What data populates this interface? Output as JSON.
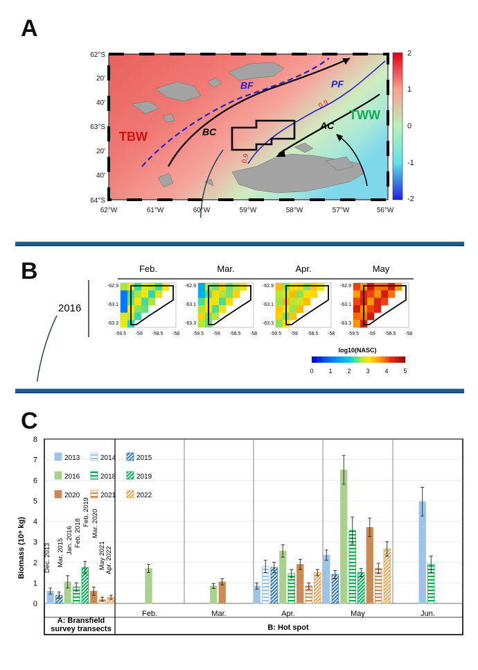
{
  "panels": {
    "a": "A",
    "b": "B",
    "c": "C"
  },
  "map": {
    "lat_labels": [
      "62°S",
      "20'",
      "40'",
      "63°S",
      "20'",
      "40'",
      "64°S"
    ],
    "lon_labels": [
      "62°W",
      "61°W",
      "60°W",
      "59°W",
      "58°W",
      "57°W",
      "56°W"
    ],
    "water_masses": {
      "tbw": "TBW",
      "tww": "TWW"
    },
    "fronts": {
      "bf": "BF",
      "pf": "PF"
    },
    "currents": {
      "bc": "BC",
      "ac": "AC"
    },
    "contours": {
      "c1": "0.9",
      "c2": "0.9"
    },
    "colorbar_ticks": [
      "2",
      "1",
      "0",
      "-1",
      "-2"
    ],
    "colors": {
      "high": "#d7191c",
      "mid": "#ffffff",
      "low": "#2b83ba",
      "front": "#2222cc",
      "land": "#9e9e9e"
    }
  },
  "heatmaps": {
    "year": "2016",
    "months": [
      "Feb.",
      "Mar.",
      "Apr.",
      "May"
    ],
    "y_ticks": [
      "-62.9",
      "-63.1",
      "-63.3"
    ],
    "x_ticks": [
      "-59.5",
      "-59",
      "-58.5",
      "-58"
    ],
    "colorbar_label": "log10(NASC)",
    "colorbar_ticks": [
      "0",
      "1",
      "2",
      "3",
      "4",
      "5"
    ]
  },
  "chart_data": {
    "type": "bar",
    "ylabel": "Biomass  (10⁹ kg)",
    "ylim": [
      0,
      8
    ],
    "y_ticks": [
      "0",
      "1",
      "2",
      "3",
      "4",
      "5",
      "6",
      "7",
      "8"
    ],
    "group_labels": [
      "A: Bransfield survey transects",
      "B: Hot spot"
    ],
    "group_a_line1": "A: Bransfield",
    "group_a_line2": "survey transects",
    "sections": [
      "",
      "Feb.",
      "Mar.",
      "Apr.",
      "May",
      "Jun."
    ],
    "survey_labels": [
      "Dec. 2013",
      "Mar. 2015",
      "Jan. 2016",
      "Feb. 2018",
      "Feb. 2019",
      "Mar. 2020",
      "May 2021",
      "Apr. 2022"
    ],
    "legend": [
      {
        "name": "2013",
        "color": "#9dc3e6",
        "pattern": "solid"
      },
      {
        "name": "2014",
        "color": "#9dc3e6",
        "pattern": "hlines"
      },
      {
        "name": "2015",
        "color": "#2e75b6",
        "pattern": "diag"
      },
      {
        "name": "2016",
        "color": "#a9d18e",
        "pattern": "solid"
      },
      {
        "name": "2018",
        "color": "#00b050",
        "pattern": "hlines"
      },
      {
        "name": "2019",
        "color": "#00b050",
        "pattern": "diag"
      },
      {
        "name": "2020",
        "color": "#c98b55",
        "pattern": "solid"
      },
      {
        "name": "2021",
        "color": "#c98b55",
        "pattern": "hlines"
      },
      {
        "name": "2022",
        "color": "#e8a24e",
        "pattern": "diag"
      }
    ],
    "series": [
      {
        "section": 0,
        "name": "2013",
        "value": 0.6,
        "err": 0.15
      },
      {
        "section": 0,
        "name": "2015",
        "value": 0.4,
        "err": 0.15
      },
      {
        "section": 0,
        "name": "2016",
        "value": 1.05,
        "err": 0.3
      },
      {
        "section": 0,
        "name": "2018",
        "value": 0.8,
        "err": 0.2
      },
      {
        "section": 0,
        "name": "2019",
        "value": 1.75,
        "err": 0.3
      },
      {
        "section": 0,
        "name": "2020",
        "value": 0.6,
        "err": 0.2
      },
      {
        "section": 0,
        "name": "2021",
        "value": 0.2,
        "err": 0.1
      },
      {
        "section": 0,
        "name": "2022",
        "value": 0.3,
        "err": 0.1
      },
      {
        "section": 1,
        "name": "2016",
        "value": 1.7,
        "err": 0.2
      },
      {
        "section": 2,
        "name": "2016",
        "value": 0.85,
        "err": 0.12
      },
      {
        "section": 2,
        "name": "2020",
        "value": 1.05,
        "err": 0.15
      },
      {
        "section": 3,
        "name": "2013",
        "value": 0.85,
        "err": 0.15
      },
      {
        "section": 3,
        "name": "2014",
        "value": 1.8,
        "err": 0.3
      },
      {
        "section": 3,
        "name": "2015",
        "value": 1.75,
        "err": 0.25
      },
      {
        "section": 3,
        "name": "2016",
        "value": 2.55,
        "err": 0.3
      },
      {
        "section": 3,
        "name": "2018",
        "value": 1.45,
        "err": 0.2
      },
      {
        "section": 3,
        "name": "2020",
        "value": 1.9,
        "err": 0.25
      },
      {
        "section": 3,
        "name": "2021",
        "value": 0.85,
        "err": 0.15
      },
      {
        "section": 3,
        "name": "2022",
        "value": 1.5,
        "err": 0.15
      },
      {
        "section": 4,
        "name": "2013",
        "value": 2.35,
        "err": 0.25
      },
      {
        "section": 4,
        "name": "2015",
        "value": 1.4,
        "err": 0.2
      },
      {
        "section": 4,
        "name": "2016",
        "value": 6.5,
        "err": 0.7
      },
      {
        "section": 4,
        "name": "2018",
        "value": 3.55,
        "err": 0.65
      },
      {
        "section": 4,
        "name": "2019",
        "value": 1.5,
        "err": 0.2
      },
      {
        "section": 4,
        "name": "2020",
        "value": 3.7,
        "err": 0.45
      },
      {
        "section": 4,
        "name": "2021",
        "value": 1.7,
        "err": 0.25
      },
      {
        "section": 4,
        "name": "2022",
        "value": 2.65,
        "err": 0.35
      },
      {
        "section": 5,
        "name": "2013",
        "value": 4.95,
        "err": 0.7
      },
      {
        "section": 5,
        "name": "2018",
        "value": 1.9,
        "err": 0.4
      }
    ]
  }
}
